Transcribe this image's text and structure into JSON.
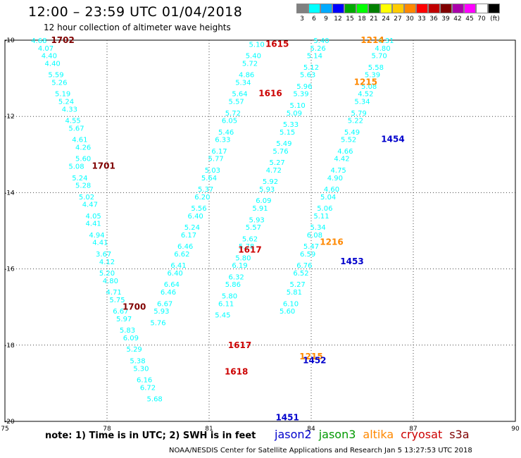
{
  "title": "12:00 – 23:59 UTC 01/04/2018",
  "subtitle": "12 hour collection of altimeter wave heights",
  "scale": {
    "unit_label": "(ft)",
    "stops": [
      {
        "label": "3",
        "color": "#808080"
      },
      {
        "label": "6",
        "color": "#00ffff"
      },
      {
        "label": "9",
        "color": "#00aaff"
      },
      {
        "label": "12",
        "color": "#0000ff"
      },
      {
        "label": "15",
        "color": "#00aa00"
      },
      {
        "label": "18",
        "color": "#00ff00"
      },
      {
        "label": "21",
        "color": "#008000"
      },
      {
        "label": "24",
        "color": "#ffff00"
      },
      {
        "label": "27",
        "color": "#ffcc00"
      },
      {
        "label": "30",
        "color": "#ff8800"
      },
      {
        "label": "33",
        "color": "#ff0000"
      },
      {
        "label": "36",
        "color": "#c00000"
      },
      {
        "label": "39",
        "color": "#800000"
      },
      {
        "label": "42",
        "color": "#aa00aa"
      },
      {
        "label": "45",
        "color": "#ff00ff"
      },
      {
        "label": "70",
        "color": "#ffffff"
      },
      {
        "label": "",
        "color": "#000000"
      }
    ]
  },
  "note": "note: 1) Time is in UTC; 2) SWH is in feet",
  "satellites": [
    {
      "name": "jason2",
      "color": "#0000cc"
    },
    {
      "name": "jason3",
      "color": "#009900"
    },
    {
      "name": "altika",
      "color": "#ff8800"
    },
    {
      "name": "cryosat",
      "color": "#cc0000"
    },
    {
      "name": "s3a",
      "color": "#800000"
    }
  ],
  "footer": "NOAA/NESDIS Center for Satellite Applications and Research   Jan  5 13:27:53 UTC 2018",
  "chart_data": {
    "type": "scatter",
    "title": "12:00 – 23:59 UTC 01/04/2018",
    "subtitle": "12 hour collection of altimeter wave heights",
    "xlim": [
      75,
      90
    ],
    "ylim": [
      -20,
      -10
    ],
    "x_ticks": [
      "75",
      "78",
      "81",
      "84",
      "87",
      "90"
    ],
    "y_ticks": [
      "-10",
      "-12",
      "-14",
      "-16",
      "-18",
      "-20"
    ],
    "grid": true,
    "point_color": "#00ffff",
    "tracks": [
      {
        "x": [
          76.0,
          76.2,
          76.3,
          76.4,
          76.5,
          76.6,
          76.7,
          76.8,
          76.9,
          77.0,
          77.1,
          77.2,
          77.3,
          77.3,
          77.1,
          77.2,
          77.3,
          77.4,
          77.5,
          77.6,
          77.6,
          77.7,
          77.8,
          77.9,
          78.0,
          78.0,
          78.1,
          78.2,
          78.3,
          78.4,
          78.5,
          78.6,
          78.7,
          78.8,
          78.9,
          79.0,
          79.1,
          79.2,
          79.4
        ],
        "y": [
          -10.0,
          -10.2,
          -10.4,
          -10.6,
          -10.9,
          -11.1,
          -11.4,
          -11.6,
          -11.8,
          -12.1,
          -12.3,
          -12.6,
          -12.8,
          -13.1,
          -13.3,
          -13.6,
          -13.8,
          -14.1,
          -14.3,
          -14.6,
          -14.8,
          -15.1,
          -15.3,
          -15.6,
          -15.8,
          -16.1,
          -16.3,
          -16.6,
          -16.8,
          -17.1,
          -17.3,
          -17.6,
          -17.8,
          -18.1,
          -18.4,
          -18.6,
          -18.9,
          -19.1,
          -19.4
        ],
        "values": [
          "4.68",
          "4.07",
          "4.40",
          "4.40",
          "5.59",
          "5.26",
          "5.19",
          "5.24",
          "4.33",
          "4.55",
          "5.67",
          "4.61",
          "4.26",
          "5.60",
          "5.08",
          "5.24",
          "5.28",
          "5.02",
          "4.47",
          "4.05",
          "4.41",
          "4.94",
          "4.41",
          "3.67",
          "4.12",
          "5.20",
          "4.80",
          "4.71",
          "5.75",
          "6.67",
          "5.97",
          "5.83",
          "6.09",
          "5.29",
          "5.38",
          "5.30",
          "6.16",
          "6.72",
          "5.68"
        ]
      },
      {
        "x": [
          82.4,
          82.3,
          82.2,
          82.1,
          82.0,
          81.9,
          81.8,
          81.7,
          81.6,
          81.5,
          81.4,
          81.3,
          81.2,
          81.1,
          81.0,
          80.9,
          80.8,
          80.7,
          80.6,
          80.5,
          80.4,
          80.3,
          80.2,
          80.1,
          80.0,
          79.9,
          79.8,
          79.7,
          79.6,
          79.5
        ],
        "y": [
          -10.1,
          -10.4,
          -10.6,
          -10.9,
          -11.1,
          -11.4,
          -11.6,
          -11.9,
          -12.1,
          -12.4,
          -12.6,
          -12.9,
          -13.1,
          -13.4,
          -13.6,
          -13.9,
          -14.1,
          -14.4,
          -14.6,
          -14.9,
          -15.1,
          -15.4,
          -15.6,
          -15.9,
          -16.1,
          -16.4,
          -16.6,
          -16.9,
          -17.1,
          -17.4
        ],
        "values": [
          "5.10",
          "5.40",
          "5.72",
          "4.86",
          "5.34",
          "5.64",
          "5.57",
          "5.72",
          "6.05",
          "5.46",
          "6.33",
          "6.17",
          "5.77",
          "5.03",
          "5.64",
          "5.37",
          "6.20",
          "5.56",
          "6.40",
          "5.24",
          "6.17",
          "6.46",
          "6.62",
          "6.41",
          "6.40",
          "6.64",
          "6.46",
          "6.67",
          "5.93",
          "5.76"
        ]
      },
      {
        "x": [
          84.3,
          84.2,
          84.1,
          84.0,
          83.9,
          83.8,
          83.7,
          83.6,
          83.5,
          83.4,
          83.3,
          83.2,
          83.1,
          83.0,
          82.9,
          82.8,
          82.7,
          82.6,
          82.5,
          82.4,
          82.3,
          82.2,
          82.1,
          82.0,
          81.9,
          81.8,
          81.7,
          81.6,
          81.5,
          81.4
        ],
        "y": [
          -10.0,
          -10.2,
          -10.4,
          -10.7,
          -10.9,
          -11.2,
          -11.4,
          -11.7,
          -11.9,
          -12.2,
          -12.4,
          -12.7,
          -12.9,
          -13.2,
          -13.4,
          -13.7,
          -13.9,
          -14.2,
          -14.4,
          -14.7,
          -14.9,
          -15.2,
          -15.4,
          -15.7,
          -15.9,
          -16.2,
          -16.4,
          -16.7,
          -16.9,
          -17.2
        ],
        "values": [
          "5.40",
          "5.26",
          "5.14",
          "5.12",
          "5.63",
          "5.96",
          "5.39",
          "5.10",
          "5.09",
          "5.33",
          "5.15",
          "5.49",
          "5.76",
          "5.27",
          "4.72",
          "5.92",
          "5.93",
          "6.09",
          "5.91",
          "5.93",
          "5.57",
          "5.62",
          "5.78",
          "5.80",
          "6.19",
          "6.32",
          "5.86",
          "5.80",
          "6.11",
          "5.45"
        ]
      },
      {
        "x": [
          86.2,
          86.1,
          86.0,
          85.9,
          85.8,
          85.7,
          85.6,
          85.5,
          85.4,
          85.3,
          85.2,
          85.1,
          85.0,
          84.9,
          84.8,
          84.7,
          84.6,
          84.5,
          84.4,
          84.3,
          84.2,
          84.1,
          84.0,
          83.9,
          83.8,
          83.7,
          83.6,
          83.5,
          83.4,
          83.3
        ],
        "y": [
          -10.0,
          -10.2,
          -10.4,
          -10.7,
          -10.9,
          -11.2,
          -11.4,
          -11.6,
          -11.9,
          -12.1,
          -12.4,
          -12.6,
          -12.9,
          -13.1,
          -13.4,
          -13.6,
          -13.9,
          -14.1,
          -14.4,
          -14.6,
          -14.9,
          -15.1,
          -15.4,
          -15.6,
          -15.9,
          -16.1,
          -16.4,
          -16.6,
          -16.9,
          -17.1
        ],
        "values": [
          "6.31",
          "4.80",
          "5.70",
          "5.58",
          "5.39",
          "5.08",
          "4.52",
          "5.34",
          "5.79",
          "5.22",
          "5.49",
          "5.52",
          "4.66",
          "4.42",
          "4.75",
          "4.90",
          "4.60",
          "5.04",
          "5.06",
          "5.11",
          "5.34",
          "6.08",
          "5.47",
          "6.59",
          "6.76",
          "6.52",
          "5.27",
          "5.81",
          "6.10",
          "5.60"
        ]
      }
    ],
    "markers": [
      {
        "label": "1702",
        "x": 76.7,
        "y": -10.0,
        "color": "#800000"
      },
      {
        "label": "1701",
        "x": 77.9,
        "y": -13.3,
        "color": "#800000"
      },
      {
        "label": "1700",
        "x": 78.8,
        "y": -17.0,
        "color": "#800000"
      },
      {
        "label": "1615",
        "x": 83.0,
        "y": -10.1,
        "color": "#cc0000"
      },
      {
        "label": "1616",
        "x": 82.8,
        "y": -11.4,
        "color": "#cc0000"
      },
      {
        "label": "1617",
        "x": 82.2,
        "y": -15.5,
        "color": "#cc0000"
      },
      {
        "label": "1617",
        "x": 81.9,
        "y": -18.0,
        "color": "#cc0000"
      },
      {
        "label": "1618",
        "x": 81.8,
        "y": -18.7,
        "color": "#cc0000"
      },
      {
        "label": "1214",
        "x": 85.8,
        "y": -10.0,
        "color": "#ff8800"
      },
      {
        "label": "1215",
        "x": 85.6,
        "y": -11.1,
        "color": "#ff8800"
      },
      {
        "label": "1216",
        "x": 84.6,
        "y": -15.3,
        "color": "#ff8800"
      },
      {
        "label": "1215",
        "x": 84.0,
        "y": -18.3,
        "color": "#ff8800"
      },
      {
        "label": "1454",
        "x": 86.4,
        "y": -12.6,
        "color": "#0000cc"
      },
      {
        "label": "1453",
        "x": 85.2,
        "y": -15.8,
        "color": "#0000cc"
      },
      {
        "label": "1452",
        "x": 84.1,
        "y": -18.4,
        "color": "#0000cc"
      },
      {
        "label": "1451",
        "x": 83.3,
        "y": -19.9,
        "color": "#0000cc"
      }
    ]
  }
}
